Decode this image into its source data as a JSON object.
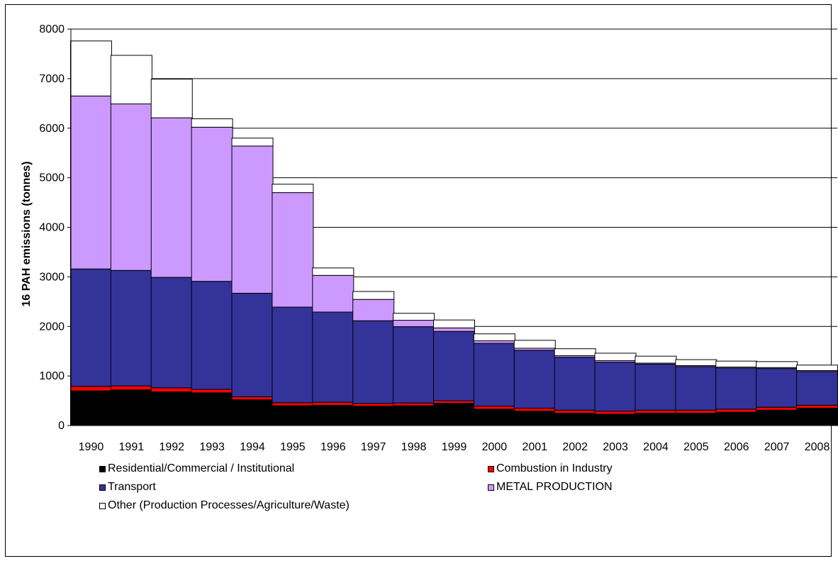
{
  "chart_data": {
    "type": "bar",
    "stacked": true,
    "title": "",
    "xlabel": "",
    "ylabel": "16 PAH emissions (tonnes)",
    "ylim": [
      0,
      8000
    ],
    "yticks": [
      "0",
      "1000",
      "2000",
      "3000",
      "4000",
      "5000",
      "6000",
      "7000",
      "8000"
    ],
    "grid": true,
    "legend_position": "bottom",
    "categories": [
      "1990",
      "1991",
      "1992",
      "1993",
      "1994",
      "1995",
      "1996",
      "1997",
      "1998",
      "1999",
      "2000",
      "2001",
      "2002",
      "2003",
      "2004",
      "2005",
      "2006",
      "2007",
      "2008"
    ],
    "series": [
      {
        "name": "Residential/Commercial / Institutional",
        "color": "#000000",
        "values": [
          700,
          720,
          680,
          660,
          520,
          400,
          410,
          390,
          400,
          450,
          330,
          290,
          250,
          230,
          250,
          250,
          270,
          310,
          350
        ]
      },
      {
        "name": "Combustion in Industry",
        "color": "#ff0000",
        "values": [
          90,
          80,
          80,
          70,
          60,
          60,
          60,
          55,
          55,
          50,
          60,
          60,
          60,
          60,
          60,
          60,
          60,
          60,
          60
        ]
      },
      {
        "name": "Transport",
        "color": "#333399",
        "values": [
          2370,
          2330,
          2230,
          2180,
          2090,
          1930,
          1820,
          1670,
          1540,
          1400,
          1270,
          1170,
          1070,
          990,
          930,
          880,
          830,
          780,
          680
        ]
      },
      {
        "name": "METAL PRODUCTION",
        "color": "#cc99ff",
        "values": [
          3490,
          3360,
          3220,
          3110,
          2970,
          2310,
          740,
          430,
          130,
          70,
          50,
          40,
          30,
          30,
          20,
          20,
          20,
          20,
          20
        ]
      },
      {
        "name": "Other (Production Processes/Agriculture/Waste)",
        "color": "#ffffff",
        "values": [
          1110,
          980,
          780,
          170,
          160,
          170,
          150,
          160,
          140,
          160,
          140,
          160,
          140,
          150,
          140,
          120,
          120,
          120,
          110
        ]
      }
    ]
  }
}
